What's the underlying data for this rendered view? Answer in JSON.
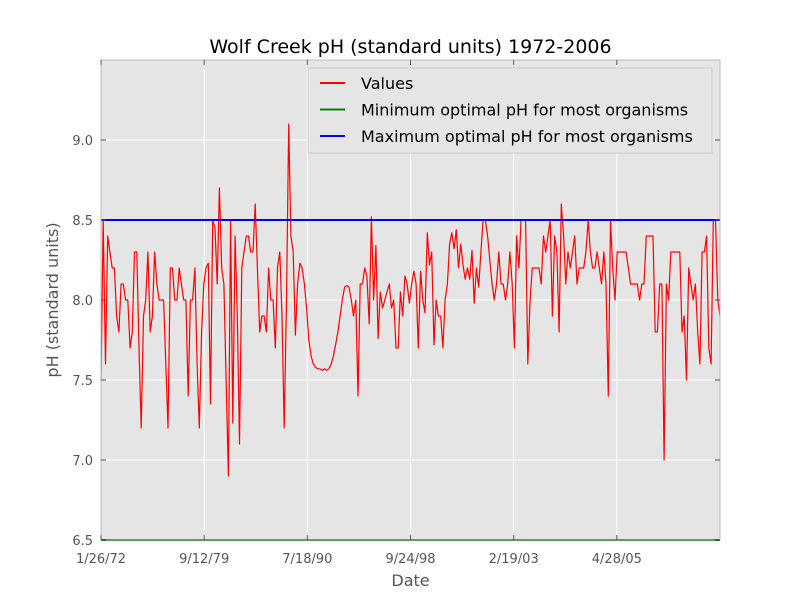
{
  "chart_data": {
    "type": "line",
    "title": "Wolf Creek pH (standard units) 1972-2006",
    "xlabel": "Date",
    "ylabel": "pH (standard units)",
    "ylim": [
      6.5,
      9.5
    ],
    "y_ticks": [
      "6.5",
      "7.0",
      "7.5",
      "8.0",
      "8.5",
      "9.0"
    ],
    "x_tick_labels": [
      "1/26/72",
      "9/12/79",
      "7/18/90",
      "9/24/98",
      "2/19/03",
      "4/28/05"
    ],
    "grid": true,
    "legend_position": "upper-right",
    "series": [
      {
        "name": "Values",
        "color": "#ff0000",
        "values": [
          7.5,
          8.5,
          7.6,
          8.4,
          8.3,
          8.2,
          8.2,
          7.9,
          7.8,
          8.1,
          8.1,
          8.0,
          8.0,
          7.7,
          7.8,
          8.3,
          8.3,
          7.7,
          7.2,
          7.9,
          8.0,
          8.3,
          7.8,
          7.9,
          8.3,
          8.1,
          8.0,
          8.0,
          8.0,
          7.6,
          7.2,
          8.2,
          8.2,
          8.0,
          8.0,
          8.2,
          8.1,
          8.0,
          8.0,
          7.4,
          8.0,
          8.0,
          8.2,
          7.6,
          7.2,
          7.8,
          8.1,
          8.2,
          8.23,
          7.35,
          8.5,
          8.45,
          8.1,
          8.7,
          8.2,
          8.1,
          7.5,
          6.9,
          8.5,
          7.23,
          8.4,
          7.9,
          7.1,
          8.2,
          8.3,
          8.4,
          8.4,
          8.3,
          8.3,
          8.6,
          8.2,
          7.8,
          7.9,
          7.9,
          7.8,
          8.2,
          8.0,
          8.0,
          7.7,
          8.2,
          8.3,
          7.9,
          7.2,
          8.0,
          9.1,
          8.4,
          8.3,
          7.78,
          8.1,
          8.23,
          8.2,
          8.1,
          7.95,
          7.75,
          7.65,
          7.6,
          7.58,
          7.57,
          7.57,
          7.56,
          7.57,
          7.56,
          7.57,
          7.6,
          7.65,
          7.72,
          7.8,
          7.9,
          8.0,
          8.08,
          8.09,
          8.08,
          8.0,
          7.9,
          8.0,
          7.4,
          8.1,
          8.1,
          8.2,
          8.15,
          7.85,
          8.52,
          8.0,
          8.34,
          7.76,
          8.05,
          7.95,
          8.0,
          8.05,
          8.1,
          7.95,
          8.0,
          7.7,
          7.7,
          8.05,
          7.9,
          8.15,
          8.1,
          7.98,
          8.1,
          8.18,
          8.1,
          7.7,
          8.18,
          8.0,
          7.92,
          8.42,
          8.22,
          8.3,
          7.72,
          8.0,
          7.9,
          7.9,
          7.7,
          8.0,
          8.1,
          8.35,
          8.42,
          8.32,
          8.44,
          8.2,
          8.35,
          8.22,
          8.13,
          8.2,
          8.13,
          8.31,
          7.98,
          8.2,
          8.08,
          8.3,
          8.5,
          8.5,
          8.4,
          8.25,
          8.1,
          8.0,
          8.1,
          8.3,
          8.1,
          8.1,
          8.0,
          8.1,
          8.3,
          8.1,
          7.7,
          8.4,
          8.2,
          8.5,
          8.5,
          8.5,
          7.6,
          8.0,
          8.2,
          8.2,
          8.2,
          8.2,
          8.1,
          8.4,
          8.3,
          8.4,
          8.5,
          7.9,
          8.4,
          8.3,
          7.8,
          8.6,
          8.4,
          8.1,
          8.3,
          8.2,
          8.3,
          8.4,
          8.1,
          8.2,
          8.2,
          8.2,
          8.3,
          8.5,
          8.3,
          8.2,
          8.2,
          8.3,
          8.2,
          8.1,
          8.3,
          8.1,
          7.4,
          8.5,
          8.2,
          8.0,
          8.3,
          8.3,
          8.3,
          8.3,
          8.3,
          8.2,
          8.1,
          8.1,
          8.1,
          8.1,
          8.0,
          8.1,
          8.1,
          8.4,
          8.4,
          8.4,
          8.4,
          7.8,
          7.8,
          8.1,
          8.1,
          7.0,
          8.1,
          8.0,
          8.3,
          8.3,
          8.3,
          8.3,
          8.3,
          7.8,
          7.9,
          7.5,
          8.2,
          8.1,
          8.0,
          8.1,
          7.8,
          7.6,
          8.3,
          8.3,
          8.4,
          7.7,
          7.6,
          8.5,
          8.5,
          8.0,
          7.9
        ]
      },
      {
        "name": "Minimum optimal pH for most organisms",
        "color": "#008000",
        "constant": 6.5
      },
      {
        "name": "Maximum optimal pH for most organisms",
        "color": "#0000ff",
        "constant": 8.5
      }
    ]
  }
}
